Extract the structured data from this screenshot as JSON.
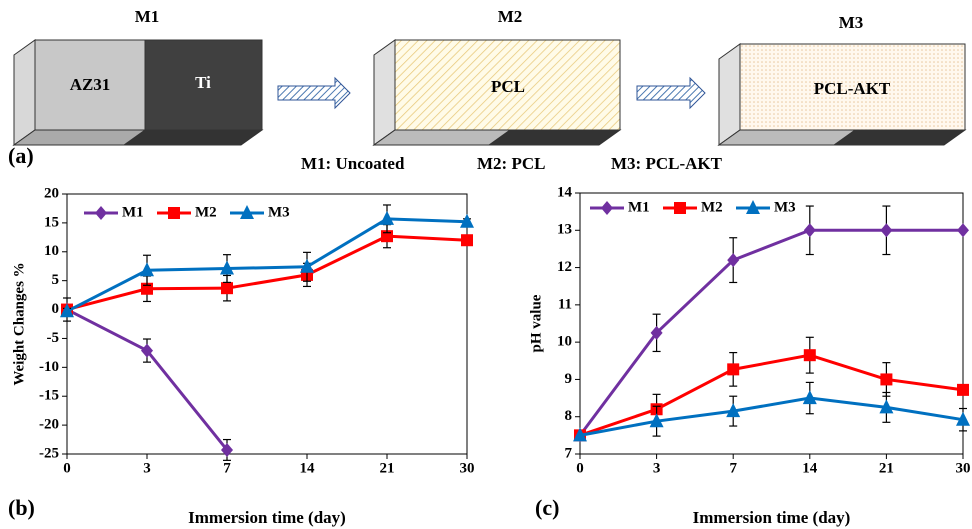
{
  "diagram": {
    "panel_label": "(a)",
    "boxes": [
      {
        "title": "M1",
        "parts": [
          "AZ31",
          "Ti"
        ]
      },
      {
        "title": "M2",
        "parts": [
          "PCL"
        ]
      },
      {
        "title": "M3",
        "parts": [
          "PCL-AKT"
        ]
      }
    ],
    "legend": [
      "M1: Uncoated",
      "M2: PCL",
      "M3: PCL-AKT"
    ]
  },
  "chart_data": [
    {
      "type": "line",
      "panel_label": "(b)",
      "x_label": "Immersion time (day)",
      "y_label": "Weight Changes %",
      "categories": [
        "0",
        "3",
        "7",
        "14",
        "21",
        "30"
      ],
      "ylim": [
        -25,
        20
      ],
      "yticks": [
        -25,
        -20,
        -15,
        -10,
        -5,
        0,
        5,
        10,
        15,
        20
      ],
      "series": [
        {
          "name": "M1",
          "color": "#7030a0",
          "marker": "diamond",
          "values": [
            0,
            -7.1,
            -24.3,
            null,
            null,
            null
          ],
          "errors": [
            2,
            2,
            1.8,
            null,
            null,
            null
          ]
        },
        {
          "name": "M2",
          "color": "#ff0000",
          "marker": "square",
          "values": [
            0,
            3.6,
            3.7,
            6.0,
            12.7,
            12.0
          ],
          "errors": [
            0.5,
            2.2,
            2.2,
            2,
            2,
            0.8
          ]
        },
        {
          "name": "M3",
          "color": "#0070c0",
          "marker": "triangle",
          "values": [
            -0.3,
            6.8,
            7.1,
            7.4,
            15.7,
            15.2
          ],
          "errors": [
            0.5,
            2.6,
            2.4,
            2.5,
            2.4,
            0.5
          ]
        }
      ]
    },
    {
      "type": "line",
      "panel_label": "(c)",
      "x_label": "Immersion time (day)",
      "y_label": "pH value",
      "categories": [
        "0",
        "3",
        "7",
        "14",
        "21",
        "30"
      ],
      "ylim": [
        7,
        14
      ],
      "yticks": [
        7,
        8,
        9,
        10,
        11,
        12,
        13,
        14
      ],
      "series": [
        {
          "name": "M1",
          "color": "#7030a0",
          "marker": "diamond",
          "values": [
            7.5,
            10.25,
            12.2,
            13.0,
            13.0,
            13.0
          ],
          "errors": [
            0,
            0.5,
            0.6,
            0.65,
            0.65,
            0
          ]
        },
        {
          "name": "M2",
          "color": "#ff0000",
          "marker": "square",
          "values": [
            7.5,
            8.2,
            9.27,
            9.65,
            9.0,
            8.72
          ],
          "errors": [
            0,
            0.4,
            0.45,
            0.48,
            0.45,
            0
          ]
        },
        {
          "name": "M3",
          "color": "#0070c0",
          "marker": "triangle",
          "values": [
            7.5,
            7.88,
            8.15,
            8.5,
            8.25,
            7.92
          ],
          "errors": [
            0,
            0.4,
            0.4,
            0.42,
            0.4,
            0.3
          ]
        }
      ]
    }
  ]
}
